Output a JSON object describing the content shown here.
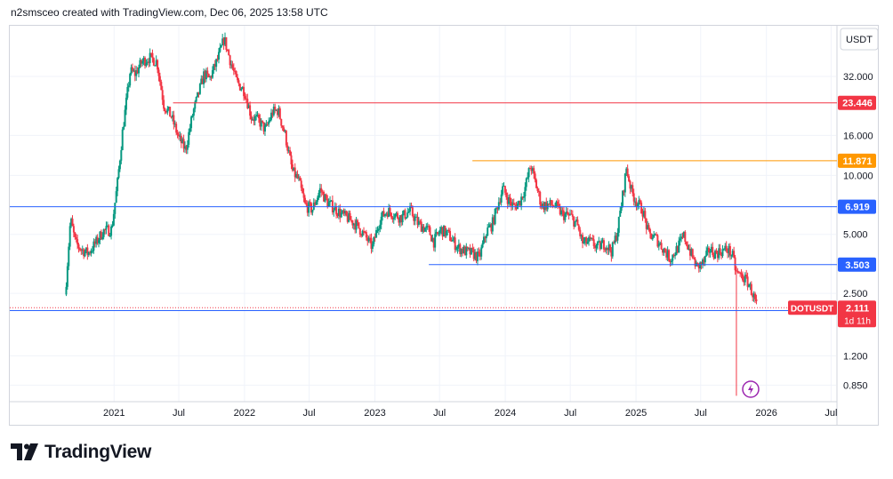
{
  "header": {
    "text": "n2smsceo created with TradingView.com, Dec 06, 2025 13:58 UTC"
  },
  "brand": {
    "name": "TradingView"
  },
  "chart_data": {
    "type": "candlestick",
    "symbol": "DOTUSDT",
    "currency": "USDT",
    "y_scale": "log",
    "ylim": [
      0.7,
      58
    ],
    "y_ticks": [
      0.85,
      1.2,
      2.5,
      5.0,
      10.0,
      16.0,
      32.0
    ],
    "y_tick_labels": [
      "0.850",
      "1.200",
      "2.500",
      "5.000",
      "10.000",
      "16.000",
      "32.000"
    ],
    "x_ticks": [
      {
        "label": "2021",
        "date": "2021-01-01"
      },
      {
        "label": "Jul",
        "date": "2021-07-01"
      },
      {
        "label": "2022",
        "date": "2022-01-01"
      },
      {
        "label": "Jul",
        "date": "2022-07-01"
      },
      {
        "label": "2023",
        "date": "2023-01-01"
      },
      {
        "label": "Jul",
        "date": "2023-07-01"
      },
      {
        "label": "2024",
        "date": "2024-01-01"
      },
      {
        "label": "Jul",
        "date": "2024-07-01"
      },
      {
        "label": "2025",
        "date": "2025-01-01"
      },
      {
        "label": "Jul",
        "date": "2025-07-01"
      },
      {
        "label": "2026",
        "date": "2026-01-01"
      },
      {
        "label": "Jul",
        "date": "2026-07-01"
      }
    ],
    "x_range": [
      "2020-03-15",
      "2026-07-15"
    ],
    "colors": {
      "up": "#089981",
      "down": "#f23645",
      "blue": "#2962ff",
      "red": "#f23645",
      "orange": "#ff9800"
    },
    "levels": [
      {
        "value": 23.446,
        "label": "23.446",
        "color": "#f23645",
        "start": "2021-06-15"
      },
      {
        "value": 11.871,
        "label": "11.871",
        "color": "#ff9800",
        "start": "2023-10-01"
      },
      {
        "value": 6.919,
        "label": "6.919",
        "color": "#2962ff",
        "start": "2020-03-15"
      },
      {
        "value": 3.503,
        "label": "3.503",
        "color": "#2962ff",
        "start": "2023-06-01"
      },
      {
        "value": 2.042,
        "label": "2.042",
        "color": "#2962ff",
        "start": "2020-03-15"
      }
    ],
    "last_price": {
      "value": 2.111,
      "label": "2.111",
      "countdown": "1d 11h",
      "color": "#f23645"
    },
    "flash_crash": {
      "date": "2025-10-10",
      "low": 0.75
    },
    "waypoints": [
      [
        "2020-08-20",
        2.9
      ],
      [
        "2020-09-01",
        6.0
      ],
      [
        "2020-09-15",
        4.5
      ],
      [
        "2020-10-01",
        4.2
      ],
      [
        "2020-10-20",
        4.0
      ],
      [
        "2020-11-10",
        4.5
      ],
      [
        "2020-12-01",
        5.2
      ],
      [
        "2020-12-25",
        5.3
      ],
      [
        "2021-01-10",
        9.0
      ],
      [
        "2021-01-25",
        17.0
      ],
      [
        "2021-02-15",
        34.0
      ],
      [
        "2021-03-01",
        33.0
      ],
      [
        "2021-03-20",
        38.0
      ],
      [
        "2021-04-10",
        40.0
      ],
      [
        "2021-05-01",
        38.0
      ],
      [
        "2021-05-20",
        23.0
      ],
      [
        "2021-06-10",
        20.0
      ],
      [
        "2021-07-01",
        15.5
      ],
      [
        "2021-07-20",
        13.5
      ],
      [
        "2021-08-10",
        21.0
      ],
      [
        "2021-08-25",
        26.0
      ],
      [
        "2021-09-10",
        33.0
      ],
      [
        "2021-09-25",
        31.0
      ],
      [
        "2021-10-20",
        40.0
      ],
      [
        "2021-11-05",
        50.0
      ],
      [
        "2021-11-25",
        37.0
      ],
      [
        "2021-12-10",
        30.0
      ],
      [
        "2022-01-01",
        27.0
      ],
      [
        "2022-01-20",
        20.0
      ],
      [
        "2022-02-10",
        19.0
      ],
      [
        "2022-03-01",
        17.0
      ],
      [
        "2022-03-20",
        21.0
      ],
      [
        "2022-04-05",
        21.5
      ],
      [
        "2022-04-25",
        16.0
      ],
      [
        "2022-05-15",
        10.5
      ],
      [
        "2022-06-01",
        9.5
      ],
      [
        "2022-06-20",
        7.0
      ],
      [
        "2022-07-10",
        6.7
      ],
      [
        "2022-08-01",
        8.5
      ],
      [
        "2022-08-20",
        7.3
      ],
      [
        "2022-09-10",
        6.8
      ],
      [
        "2022-10-01",
        6.3
      ],
      [
        "2022-10-20",
        6.0
      ],
      [
        "2022-11-10",
        5.6
      ],
      [
        "2022-12-01",
        5.0
      ],
      [
        "2022-12-25",
        4.3
      ],
      [
        "2023-01-15",
        6.0
      ],
      [
        "2023-02-05",
        6.6
      ],
      [
        "2023-02-25",
        6.3
      ],
      [
        "2023-03-15",
        6.1
      ],
      [
        "2023-04-10",
        6.6
      ],
      [
        "2023-05-01",
        5.7
      ],
      [
        "2023-06-01",
        5.2
      ],
      [
        "2023-06-15",
        4.6
      ],
      [
        "2023-07-05",
        5.3
      ],
      [
        "2023-07-25",
        5.0
      ],
      [
        "2023-08-20",
        4.3
      ],
      [
        "2023-09-10",
        4.1
      ],
      [
        "2023-10-01",
        4.0
      ],
      [
        "2023-10-20",
        3.8
      ],
      [
        "2023-11-10",
        5.2
      ],
      [
        "2023-11-25",
        5.6
      ],
      [
        "2023-12-10",
        7.0
      ],
      [
        "2023-12-25",
        8.6
      ],
      [
        "2024-01-10",
        7.5
      ],
      [
        "2024-01-25",
        6.9
      ],
      [
        "2024-02-10",
        7.3
      ],
      [
        "2024-02-25",
        8.6
      ],
      [
        "2024-03-12",
        11.3
      ],
      [
        "2024-03-25",
        9.2
      ],
      [
        "2024-04-12",
        7.0
      ],
      [
        "2024-05-01",
        7.1
      ],
      [
        "2024-05-20",
        7.0
      ],
      [
        "2024-06-10",
        6.3
      ],
      [
        "2024-07-01",
        6.2
      ],
      [
        "2024-07-20",
        5.6
      ],
      [
        "2024-08-05",
        4.5
      ],
      [
        "2024-08-25",
        4.6
      ],
      [
        "2024-09-15",
        4.3
      ],
      [
        "2024-10-05",
        4.5
      ],
      [
        "2024-10-25",
        4.1
      ],
      [
        "2024-11-10",
        5.2
      ],
      [
        "2024-11-25",
        8.0
      ],
      [
        "2024-12-05",
        10.9
      ],
      [
        "2024-12-20",
        8.2
      ],
      [
        "2025-01-05",
        7.2
      ],
      [
        "2025-01-20",
        6.6
      ],
      [
        "2025-02-05",
        5.0
      ],
      [
        "2025-02-25",
        4.8
      ],
      [
        "2025-03-15",
        4.3
      ],
      [
        "2025-04-07",
        3.75
      ],
      [
        "2025-04-25",
        4.2
      ],
      [
        "2025-05-15",
        4.9
      ],
      [
        "2025-06-01",
        4.1
      ],
      [
        "2025-06-20",
        3.4
      ],
      [
        "2025-07-10",
        3.6
      ],
      [
        "2025-07-25",
        4.2
      ],
      [
        "2025-08-10",
        4.0
      ],
      [
        "2025-08-25",
        4.1
      ],
      [
        "2025-09-15",
        4.2
      ],
      [
        "2025-09-28",
        3.9
      ],
      [
        "2025-10-08",
        3.2
      ],
      [
        "2025-10-25",
        3.05
      ],
      [
        "2025-11-10",
        2.85
      ],
      [
        "2025-11-25",
        2.45
      ],
      [
        "2025-12-06",
        2.111
      ]
    ]
  }
}
